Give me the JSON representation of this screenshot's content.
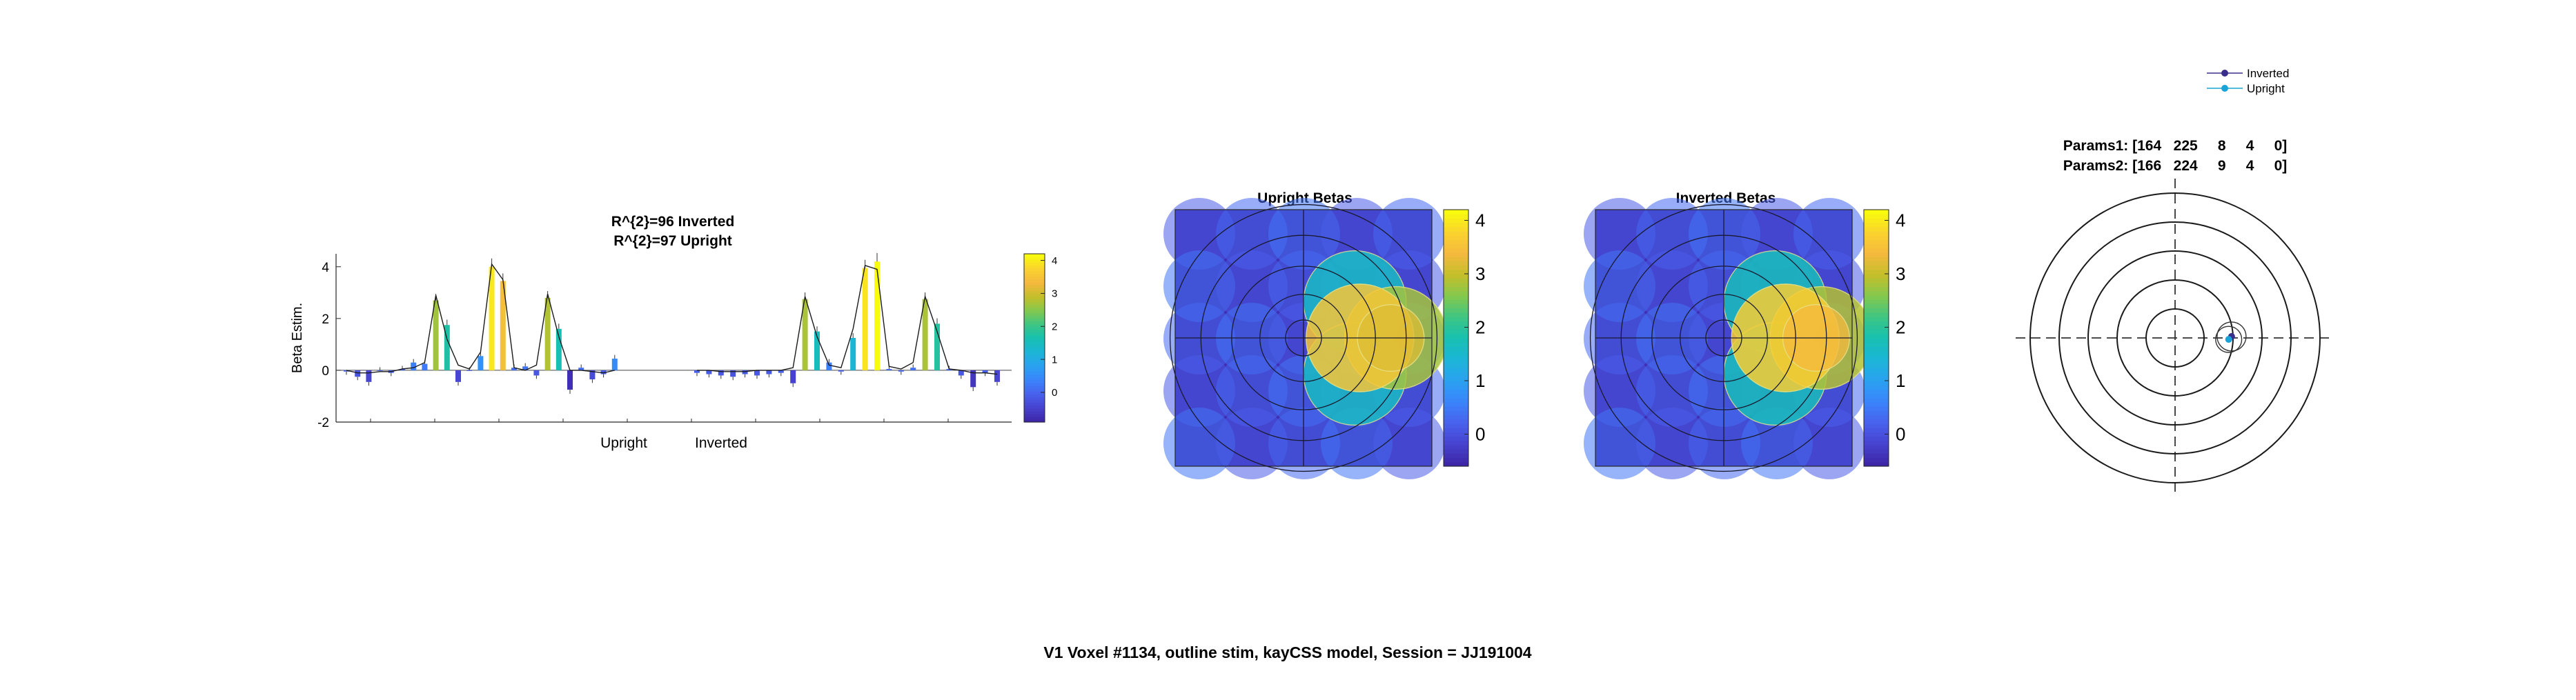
{
  "figure": {
    "suptitle": "V1 Voxel #1134, outline stim, kayCSS model, Session = JJ191004"
  },
  "colormap": [
    "#3e26a8",
    "#4743d0",
    "#4863ee",
    "#3a85fc",
    "#2aa2f0",
    "#1cb5d6",
    "#16c0b0",
    "#3ec683",
    "#84c84e",
    "#c4bf2a",
    "#f4b93d",
    "#fad22f",
    "#f9fb0e"
  ],
  "chart_data": [
    {
      "type": "bar",
      "panel": "betas-bar",
      "title_lines": [
        "R^{2}=96 Inverted",
        "R^{2}=97 Upright"
      ],
      "ylabel": "Beta Estim.",
      "ylim": [
        -2,
        4.5
      ],
      "yticks": [
        -2,
        0,
        2,
        4
      ],
      "group_labels": [
        "Upright",
        "Inverted"
      ],
      "colorbar_ticks": [
        0,
        1,
        2,
        3,
        4
      ],
      "colorbar_range": [
        -0.9,
        4.2
      ],
      "series": [
        {
          "name": "Upright",
          "values": [
            -0.05,
            -0.25,
            -0.45,
            0,
            -0.1,
            0.05,
            0.3,
            0.25,
            2.7,
            1.75,
            -0.45,
            0,
            0.55,
            4,
            3.45,
            0.1,
            0.15,
            -0.2,
            2.8,
            1.6,
            -0.75,
            0.1,
            -0.35,
            -0.15,
            0.45
          ]
        },
        {
          "name": "Inverted",
          "values": [
            -0.1,
            -0.15,
            -0.2,
            -0.25,
            -0.15,
            -0.2,
            -0.15,
            -0.1,
            -0.5,
            2.75,
            1.5,
            0.3,
            -0.05,
            1.25,
            3.95,
            4.2,
            0.05,
            -0.05,
            0.1,
            2.75,
            1.8,
            0.05,
            -0.2,
            -0.65,
            -0.1,
            -0.45
          ]
        }
      ],
      "model_fit": {
        "Upright": [
          0,
          -0.1,
          -0.1,
          -0.05,
          -0.05,
          0.05,
          0.1,
          0.3,
          2.9,
          1.2,
          0.2,
          0.05,
          0.7,
          4.1,
          3.5,
          0.1,
          0,
          0.2,
          2.95,
          1.3,
          0,
          0,
          -0.05,
          -0.1,
          0
        ],
        "Inverted": [
          0,
          0,
          -0.05,
          -0.05,
          -0.05,
          0,
          0,
          0,
          0.1,
          2.85,
          1.3,
          0.2,
          0.1,
          1.6,
          4.05,
          3.9,
          0.15,
          0.05,
          0.3,
          2.85,
          1.5,
          0.05,
          0,
          -0.1,
          -0.1,
          -0.15
        ]
      }
    },
    {
      "type": "heatmap",
      "panel": "upright-betas",
      "title": "Upright Betas",
      "colorbar_ticks": [
        0,
        1,
        2,
        3,
        4
      ],
      "colorbar_range": [
        -0.6,
        4.2
      ]
    },
    {
      "type": "heatmap",
      "panel": "inverted-betas",
      "title": "Inverted Betas",
      "colorbar_ticks": [
        0,
        1,
        2,
        3,
        4
      ],
      "colorbar_range": [
        -0.6,
        4.2
      ]
    },
    {
      "type": "scatter",
      "panel": "prf-params",
      "title_lines": [
        "Params1: [164   225     8     4     0]",
        "Params2: [166   224     9     4     0]"
      ],
      "legend": [
        "Inverted",
        "Upright"
      ],
      "legend_colors": [
        "#3a2e8c",
        "#1aa3d6"
      ],
      "ring_radii": [
        1,
        2,
        3,
        4,
        5
      ],
      "xlim": [
        -5.5,
        5.5
      ],
      "ylim": [
        -5.5,
        5.5
      ],
      "points": [
        {
          "name": "Inverted",
          "x": 1.95,
          "y": 0.05,
          "r": 0.5
        },
        {
          "name": "Upright",
          "x": 1.85,
          "y": -0.05,
          "r": 0.45
        }
      ]
    }
  ]
}
